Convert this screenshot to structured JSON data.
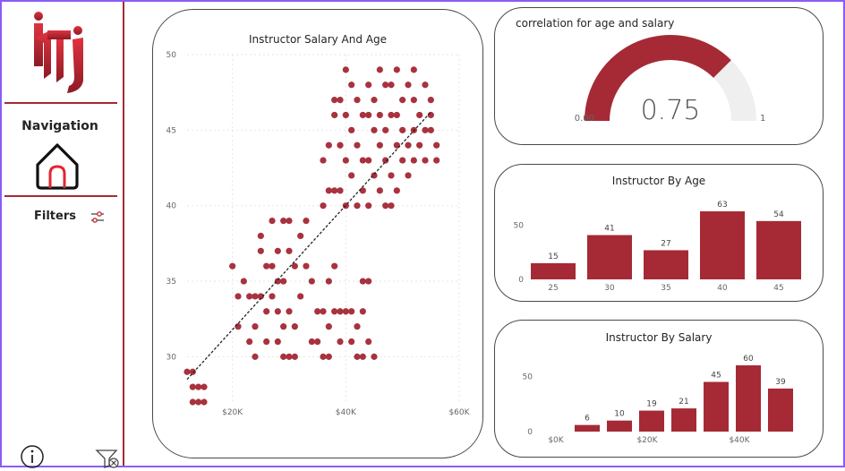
{
  "sidebar": {
    "nav_title": "Navigation",
    "filters_label": "Filters",
    "icons": [
      "logo",
      "home-icon",
      "filter-settings-icon",
      "info-icon",
      "clear-filter-icon"
    ],
    "accent": "#a52a35"
  },
  "scatter": {
    "title": "Instructor Salary And Age",
    "chart_data": {
      "type": "scatter",
      "title": "Instructor Salary And Age",
      "x_ticks": [
        "$20K",
        "$40K",
        "$60K"
      ],
      "y_ticks": [
        "30",
        "35",
        "40",
        "45",
        "50"
      ],
      "xlim": [
        12000,
        60000
      ],
      "ylim": [
        27,
        50
      ],
      "trendline": {
        "from": [
          12000,
          28.5
        ],
        "to": [
          55000,
          46.2
        ]
      },
      "points": [
        [
          12000,
          29
        ],
        [
          13000,
          29
        ],
        [
          13000,
          28
        ],
        [
          14000,
          28
        ],
        [
          15000,
          28
        ],
        [
          13000,
          27
        ],
        [
          14000,
          27
        ],
        [
          15000,
          27
        ],
        [
          20000,
          36
        ],
        [
          21000,
          34
        ],
        [
          21000,
          32
        ],
        [
          22000,
          35
        ],
        [
          23000,
          34
        ],
        [
          23000,
          31
        ],
        [
          24000,
          34
        ],
        [
          24000,
          32
        ],
        [
          24000,
          30
        ],
        [
          25000,
          38
        ],
        [
          25000,
          37
        ],
        [
          25000,
          34
        ],
        [
          26000,
          36
        ],
        [
          26000,
          33
        ],
        [
          26000,
          31
        ],
        [
          27000,
          39
        ],
        [
          27000,
          36
        ],
        [
          27000,
          34
        ],
        [
          28000,
          37
        ],
        [
          28000,
          35
        ],
        [
          28000,
          33
        ],
        [
          28000,
          31
        ],
        [
          29000,
          39
        ],
        [
          29000,
          35
        ],
        [
          29000,
          32
        ],
        [
          29000,
          30
        ],
        [
          30000,
          39
        ],
        [
          30000,
          37
        ],
        [
          30000,
          33
        ],
        [
          30000,
          30
        ],
        [
          31000,
          36
        ],
        [
          31000,
          32
        ],
        [
          31000,
          30
        ],
        [
          32000,
          38
        ],
        [
          32000,
          34
        ],
        [
          33000,
          39
        ],
        [
          33000,
          36
        ],
        [
          34000,
          31
        ],
        [
          34000,
          35
        ],
        [
          35000,
          33
        ],
        [
          35000,
          31
        ],
        [
          36000,
          43
        ],
        [
          36000,
          40
        ],
        [
          36000,
          33
        ],
        [
          36000,
          30
        ],
        [
          37000,
          44
        ],
        [
          37000,
          41
        ],
        [
          37000,
          35
        ],
        [
          37000,
          32
        ],
        [
          37000,
          30
        ],
        [
          38000,
          47
        ],
        [
          38000,
          46
        ],
        [
          38000,
          41
        ],
        [
          38000,
          36
        ],
        [
          38000,
          33
        ],
        [
          39000,
          47
        ],
        [
          39000,
          44
        ],
        [
          39000,
          41
        ],
        [
          39000,
          33
        ],
        [
          39000,
          31
        ],
        [
          40000,
          49
        ],
        [
          40000,
          46
        ],
        [
          40000,
          43
        ],
        [
          40000,
          40
        ],
        [
          40000,
          33
        ],
        [
          41000,
          48
        ],
        [
          41000,
          45
        ],
        [
          41000,
          42
        ],
        [
          41000,
          33
        ],
        [
          41000,
          31
        ],
        [
          42000,
          47
        ],
        [
          42000,
          44
        ],
        [
          42000,
          40
        ],
        [
          42000,
          32
        ],
        [
          42000,
          30
        ],
        [
          43000,
          46
        ],
        [
          43000,
          43
        ],
        [
          43000,
          41
        ],
        [
          43000,
          35
        ],
        [
          43000,
          33
        ],
        [
          43000,
          30
        ],
        [
          44000,
          48
        ],
        [
          44000,
          46
        ],
        [
          44000,
          43
        ],
        [
          44000,
          40
        ],
        [
          44000,
          35
        ],
        [
          44000,
          31
        ],
        [
          45000,
          47
        ],
        [
          45000,
          45
        ],
        [
          45000,
          42
        ],
        [
          45000,
          30
        ],
        [
          46000,
          49
        ],
        [
          46000,
          46
        ],
        [
          46000,
          44
        ],
        [
          46000,
          41
        ],
        [
          47000,
          48
        ],
        [
          47000,
          45
        ],
        [
          47000,
          43
        ],
        [
          47000,
          40
        ],
        [
          48000,
          48
        ],
        [
          48000,
          46
        ],
        [
          48000,
          42
        ],
        [
          48000,
          40
        ],
        [
          49000,
          49
        ],
        [
          49000,
          46
        ],
        [
          49000,
          44
        ],
        [
          49000,
          41
        ],
        [
          50000,
          47
        ],
        [
          50000,
          45
        ],
        [
          50000,
          43
        ],
        [
          51000,
          48
        ],
        [
          51000,
          44
        ],
        [
          51000,
          42
        ],
        [
          52000,
          49
        ],
        [
          52000,
          47
        ],
        [
          52000,
          45
        ],
        [
          52000,
          43
        ],
        [
          53000,
          46
        ],
        [
          53000,
          44
        ],
        [
          54000,
          48
        ],
        [
          54000,
          45
        ],
        [
          54000,
          43
        ],
        [
          55000,
          47
        ],
        [
          55000,
          46
        ],
        [
          55000,
          45
        ],
        [
          56000,
          44
        ],
        [
          56000,
          43
        ]
      ]
    }
  },
  "gauge": {
    "title": "correlation for age and salary",
    "value_label": "0.75",
    "min_label": "0.00",
    "max_label": "1",
    "chart_data": {
      "type": "gauge",
      "value": 0.75,
      "min": 0,
      "max": 1
    }
  },
  "age_chart": {
    "title": "Instructor By Age",
    "chart_data": {
      "type": "bar",
      "title": "Instructor By Age",
      "categories": [
        "25",
        "30",
        "35",
        "40",
        "45"
      ],
      "values": [
        15,
        41,
        27,
        63,
        54
      ],
      "y_ticks": [
        "0",
        "50"
      ],
      "ylim": [
        0,
        63
      ]
    }
  },
  "salary_chart": {
    "title": "Instructor By Salary",
    "chart_data": {
      "type": "bar",
      "title": "Instructor By Salary",
      "values": [
        6,
        10,
        19,
        21,
        45,
        60,
        39
      ],
      "x_ticks": [
        "$0K",
        "$20K",
        "$40K"
      ],
      "y_ticks": [
        "0",
        "50"
      ],
      "ylim": [
        0,
        60
      ]
    }
  },
  "colors": {
    "bar": "#a52a35",
    "dot": "#a8323e",
    "gauge_bg": "#f0efef",
    "grid": "#e6e6e6"
  }
}
